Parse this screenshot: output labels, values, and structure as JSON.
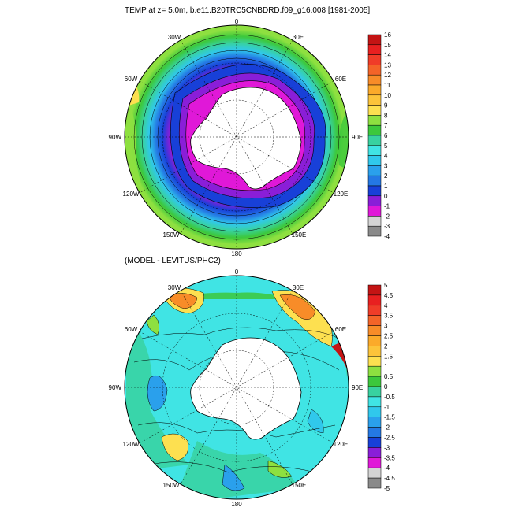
{
  "top_map": {
    "title": "TEMP at z=   5.0m, b.e11.B20TRC5CNBDRD.f09_g16.008 [1981-2005]",
    "lon_labels": [
      "0",
      "30E",
      "60E",
      "90E",
      "120E",
      "150E",
      "180",
      "150W",
      "120W",
      "90W",
      "60W",
      "30W"
    ],
    "colorbar": {
      "labels": [
        "16",
        "15",
        "14",
        "13",
        "12",
        "11",
        "10",
        "9",
        "8",
        "7",
        "6",
        "5",
        "4",
        "3",
        "2",
        "1",
        "0",
        "-1",
        "-2",
        "-3",
        "-4"
      ],
      "colors": [
        "#c41414",
        "#e82020",
        "#f03c28",
        "#f46428",
        "#f88c28",
        "#fbaa2a",
        "#fcc43a",
        "#fde050",
        "#8ee040",
        "#3cc83c",
        "#38d2a0",
        "#40e4e4",
        "#30c8ec",
        "#2aa0ec",
        "#2478e4",
        "#1840d8",
        "#8a1ed8",
        "#e018d8",
        "#d4d4d4",
        "#8a8a8a"
      ]
    }
  },
  "bottom_map": {
    "title": "(MODEL - LEVITUS/PHC2)",
    "lon_labels": [
      "0",
      "30E",
      "60E",
      "90E",
      "120E",
      "150E",
      "180",
      "150W",
      "120W",
      "90W",
      "60W",
      "30W"
    ],
    "colorbar": {
      "labels": [
        "5",
        "4.5",
        "4",
        "3.5",
        "3",
        "2.5",
        "2",
        "1.5",
        "1",
        "0.5",
        "0",
        "-0.5",
        "-1",
        "-1.5",
        "-2",
        "-2.5",
        "-3",
        "-3.5",
        "-4",
        "-4.5",
        "-5"
      ],
      "colors": [
        "#c41414",
        "#e82020",
        "#f03c28",
        "#f46428",
        "#f88c28",
        "#fbaa2a",
        "#fcc43a",
        "#fde050",
        "#8ee040",
        "#3cc83c",
        "#38d2a0",
        "#40e4e4",
        "#30c8ec",
        "#2aa0ec",
        "#2478e4",
        "#1840d8",
        "#8a1ed8",
        "#e018d8",
        "#d4d4d4",
        "#8a8a8a"
      ]
    }
  }
}
